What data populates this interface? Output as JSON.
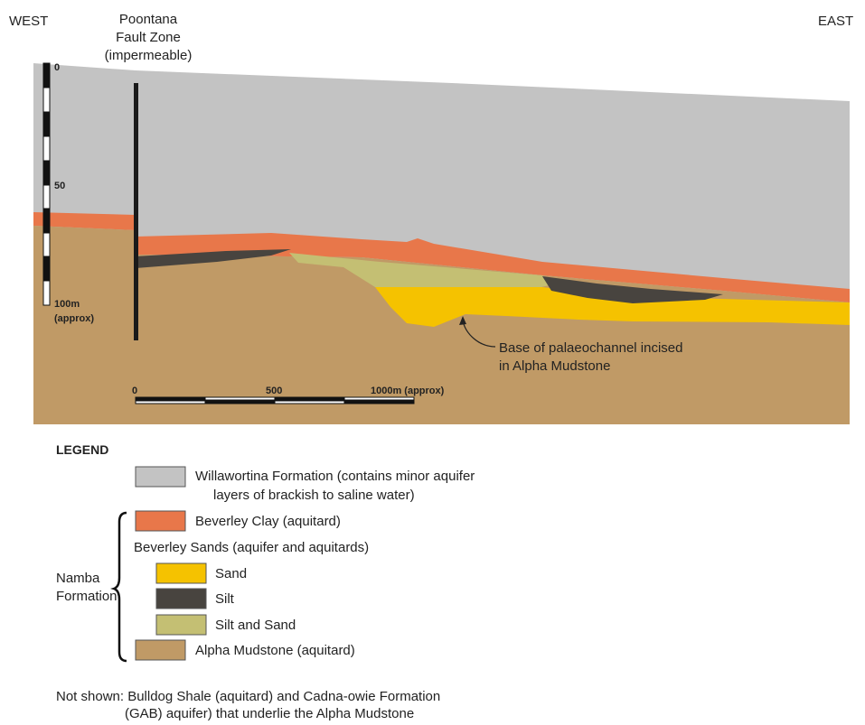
{
  "section": {
    "west": "WEST",
    "east": "EAST",
    "fault_label": [
      "Poontana",
      "Fault Zone",
      "(impermeable)"
    ],
    "vertical_scale": [
      "0",
      "50",
      "100m",
      "(approx)"
    ],
    "horizontal_scale": [
      "0",
      "500",
      "1000m (approx)"
    ],
    "annotation": [
      "Base of palaeochannel incised",
      "in Alpha Mudstone"
    ]
  },
  "legend": {
    "title": "LEGEND",
    "group_label": [
      "Namba",
      "Formation"
    ],
    "items": [
      {
        "label": [
          "Willawortina Formation (contains minor aquifer",
          "layers of brackish to saline water)"
        ]
      },
      {
        "label": [
          "Beverley Clay (aquitard)"
        ]
      },
      {
        "label": [
          "Beverley Sands (aquifer and aquitards)"
        ]
      },
      {
        "label": [
          "Sand"
        ]
      },
      {
        "label": [
          "Silt"
        ]
      },
      {
        "label": [
          "Silt and Sand"
        ]
      },
      {
        "label": [
          "Alpha Mudstone (aquitard)"
        ]
      }
    ]
  },
  "note": [
    "Not shown: Bulldog Shale (aquitard) and Cadna-owie Formation",
    "(GAB) aquifer) that underlie the Alpha Mudstone"
  ]
}
